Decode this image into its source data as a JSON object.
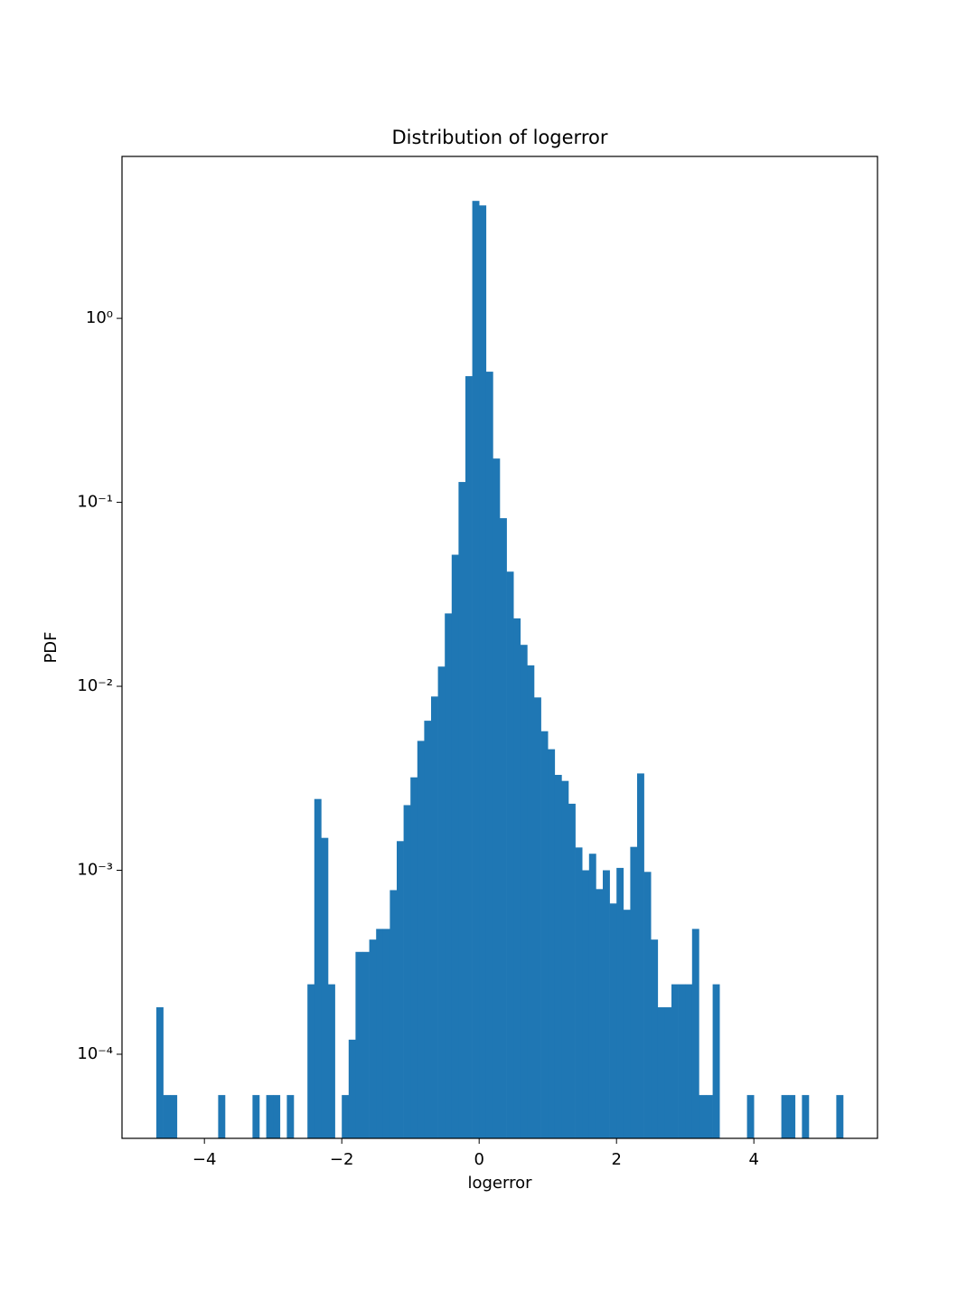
{
  "chart_data": {
    "type": "histogram",
    "title": "Distribution of logerror",
    "xlabel": "logerror",
    "ylabel": "PDF",
    "yscale": "log",
    "color": "#1f77b4",
    "bins": [
      -4.7,
      -4.6,
      -4.5,
      -4.4,
      -4.3,
      -4.2,
      -4.1,
      -4.0,
      -3.9,
      -3.8,
      -3.7,
      -3.6,
      -3.5,
      -3.4,
      -3.3,
      -3.2,
      -3.1,
      -3.0,
      -2.9,
      -2.8,
      -2.7,
      -2.6,
      -2.5,
      -2.4,
      -2.3,
      -2.2,
      -2.1,
      -2.0,
      -1.9,
      -1.8,
      -1.7,
      -1.6,
      -1.5,
      -1.4,
      -1.3,
      -1.2,
      -1.1,
      -1.0,
      -0.9,
      -0.8,
      -0.7,
      -0.6,
      -0.5,
      -0.4,
      -0.3,
      -0.2,
      -0.1,
      0.0,
      0.1,
      0.2,
      0.3,
      0.4,
      0.5,
      0.6,
      0.7,
      0.8,
      0.9,
      1.0,
      1.1,
      1.2,
      1.3,
      1.4,
      1.5,
      1.6,
      1.7,
      1.8,
      1.9,
      2.0,
      2.1,
      2.2,
      2.3,
      2.4,
      2.5,
      2.6,
      2.7,
      2.8,
      2.9,
      3.0,
      3.1,
      3.2,
      3.3,
      3.4,
      3.5,
      3.6,
      3.7,
      3.8,
      3.9,
      4.0,
      4.1,
      4.2,
      4.3,
      4.4,
      4.5,
      4.6,
      4.7,
      4.8,
      4.9,
      5.0,
      5.1,
      5.2,
      5.3
    ],
    "values": [
      0.00018,
      6e-05,
      6e-05,
      0,
      0,
      0,
      0,
      0,
      0,
      6e-05,
      0,
      0,
      0,
      0,
      6e-05,
      0,
      6e-05,
      6e-05,
      0,
      6e-05,
      0,
      0,
      0.00024,
      0.00244,
      0.0015,
      0.00024,
      0,
      6e-05,
      0.00012,
      0.00036,
      0.00036,
      0.00042,
      0.00048,
      0.00048,
      0.00078,
      0.00144,
      0.00226,
      0.0032,
      0.00505,
      0.0065,
      0.0088,
      0.0128,
      0.0249,
      0.0519,
      0.129,
      0.485,
      4.35,
      4.11,
      0.513,
      0.173,
      0.082,
      0.042,
      0.0234,
      0.0168,
      0.013,
      0.0087,
      0.0057,
      0.00455,
      0.0033,
      0.00306,
      0.0023,
      0.00133,
      0.001,
      0.00123,
      0.00079,
      0.001,
      0.00066,
      0.00103,
      0.00061,
      0.00134,
      0.00336,
      0.00098,
      0.00042,
      0.00018,
      0.00018,
      0.00024,
      0.00024,
      0.00024,
      0.00048,
      6e-05,
      6e-05,
      0.00024,
      0,
      0,
      0,
      0,
      6e-05,
      0,
      0,
      0,
      0,
      6e-05,
      6e-05,
      0,
      6e-05,
      0,
      0,
      0,
      0,
      6e-05
    ],
    "xlim": [
      -5.2,
      5.8
    ],
    "ylim": [
      3.49e-05,
      7.59
    ],
    "xticks": [
      {
        "value": -4,
        "label": "−4"
      },
      {
        "value": -2,
        "label": "−2"
      },
      0,
      2,
      4
    ],
    "yticks": [
      {
        "value": 0.0001,
        "label": "10⁻⁴"
      },
      {
        "value": 0.001,
        "label": "10⁻³"
      },
      {
        "value": 0.01,
        "label": "10⁻²"
      },
      {
        "value": 0.1,
        "label": "10⁻¹"
      },
      {
        "value": 1,
        "label": "10⁰"
      }
    ]
  }
}
